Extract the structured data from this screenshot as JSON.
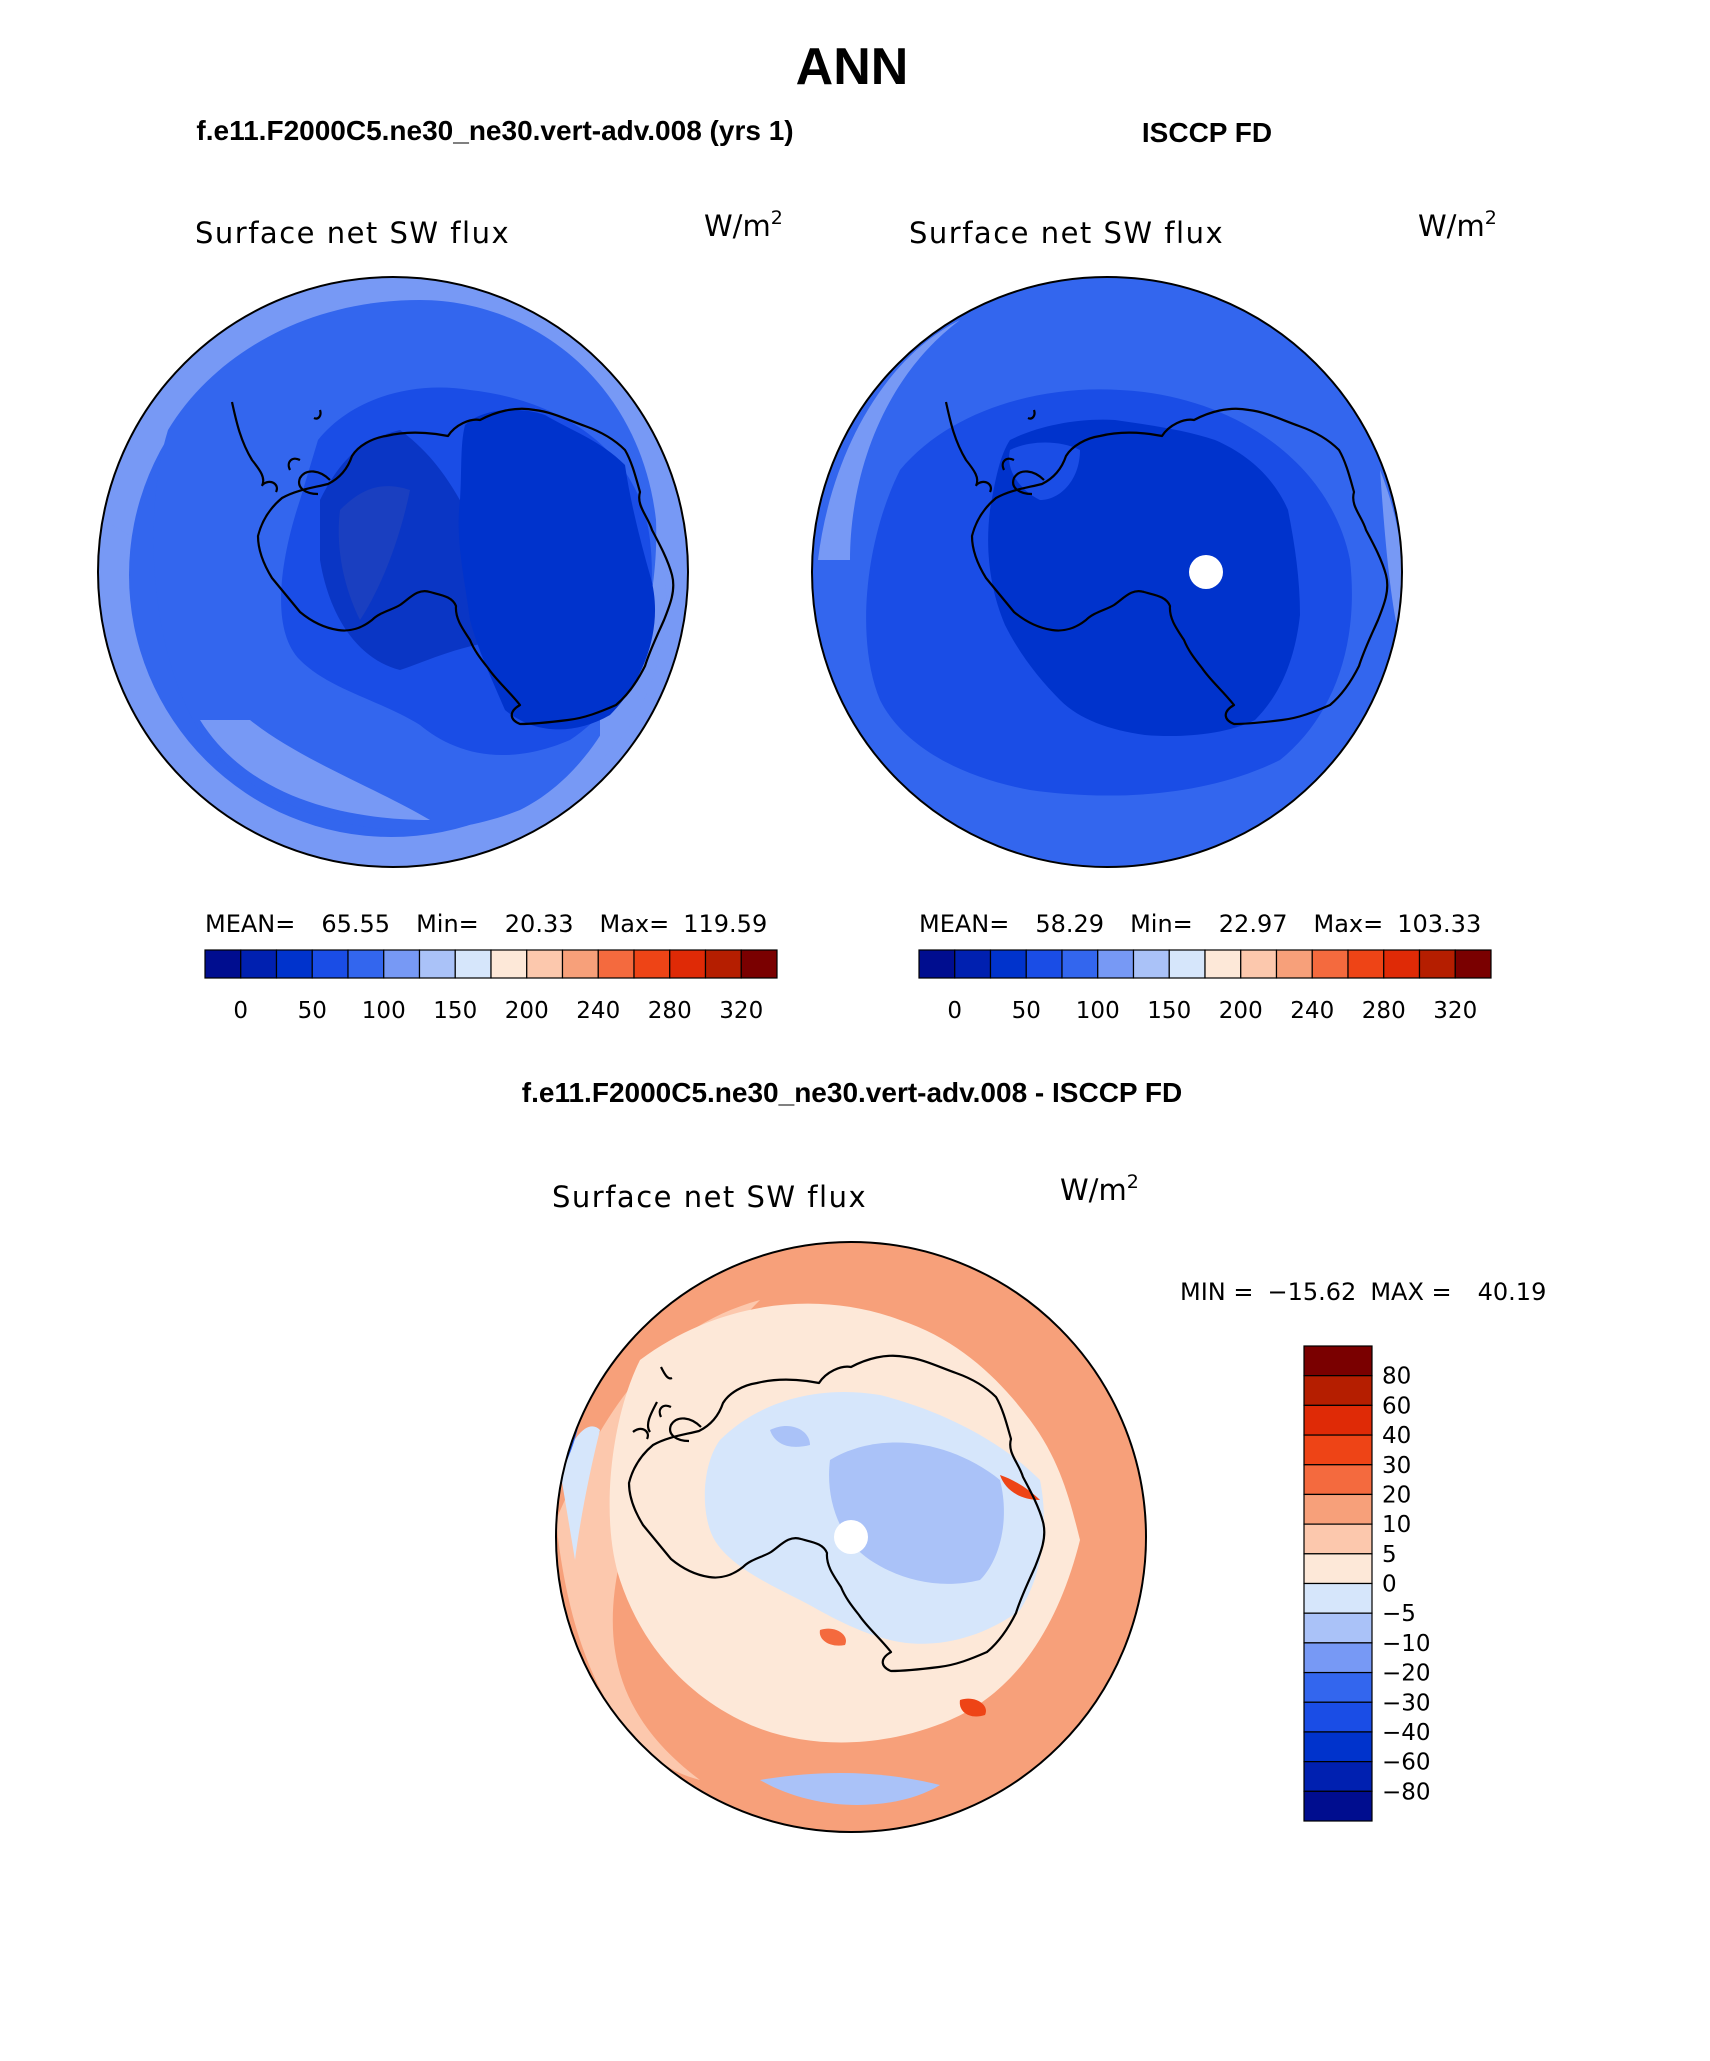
{
  "page": {
    "title": "ANN",
    "top_left_caption": "f.e11.F2000C5.ne30_ne30.vert-adv.008 (yrs 1)",
    "top_right_caption": "ISCCP FD",
    "bottom_caption": "f.e11.F2000C5.ne30_ne30.vert-adv.008 - ISCCP FD"
  },
  "panels": {
    "model": {
      "variable": "Surface net SW flux",
      "units": "W/m",
      "units_exp": "2",
      "mean_label": "MEAN=",
      "mean": "65.55",
      "min_label": "Min=",
      "min": "20.33",
      "max_label": "Max=",
      "max": "119.59"
    },
    "obs": {
      "variable": "Surface net SW flux",
      "units": "W/m",
      "units_exp": "2",
      "mean_label": "MEAN=",
      "mean": "58.29",
      "min_label": "Min=",
      "min": "22.97",
      "max_label": "Max=",
      "max": "103.33"
    },
    "diff": {
      "variable": "Surface net SW flux",
      "units": "W/m",
      "units_exp": "2",
      "min_label": "MIN =",
      "min": "−15.62",
      "max_label": "MAX =",
      "max": "40.19"
    }
  },
  "colorbars": {
    "absolute": {
      "colors": [
        "#000d8f",
        "#0020b0",
        "#0033cc",
        "#1a4de6",
        "#3366ee",
        "#7799f5",
        "#aac2f8",
        "#d6e6fb",
        "#fde8d8",
        "#fcc8ad",
        "#f7a07a",
        "#f46a3e",
        "#ee4416",
        "#df2a06",
        "#b51e00",
        "#7a0000"
      ],
      "labels": [
        "0",
        "50",
        "100",
        "150",
        "200",
        "240",
        "280",
        "320"
      ]
    },
    "difference": {
      "colors": [
        "#7a0000",
        "#b51e00",
        "#df2a06",
        "#ee4416",
        "#f46a3e",
        "#f7a07a",
        "#fcc8ad",
        "#fde8d8",
        "#d6e6fb",
        "#aac2f8",
        "#7799f5",
        "#3366ee",
        "#1a4de6",
        "#0033cc",
        "#0020b0",
        "#000d8f"
      ],
      "labels": [
        "80",
        "60",
        "40",
        "30",
        "20",
        "10",
        "5",
        "0",
        "−5",
        "−10",
        "−20",
        "−30",
        "−40",
        "−60",
        "−80"
      ]
    }
  }
}
